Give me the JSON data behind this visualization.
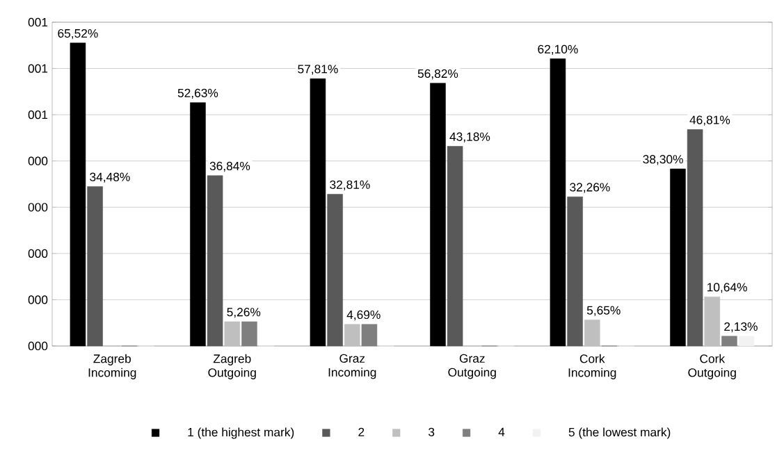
{
  "chart_data": {
    "type": "bar",
    "categories": [
      "Zagreb Incoming",
      "Zagreb Outgoing",
      "Graz Incoming",
      "Graz Outgoing",
      "Cork Incoming",
      "Cork Outgoing"
    ],
    "series": [
      {
        "name": "1 (the highest mark)",
        "color": "#000000",
        "values": [
          0.6552,
          0.5263,
          0.5781,
          0.5682,
          0.621,
          0.383
        ],
        "value_labels": [
          "65,52%",
          "52,63%",
          "57,81%",
          "56,82%",
          "62,10%",
          "38,30%"
        ]
      },
      {
        "name": "2",
        "color": "#595959",
        "values": [
          0.3448,
          0.3684,
          0.3281,
          0.4318,
          0.3226,
          0.4681
        ],
        "value_labels": [
          "34,48%",
          "36,84%",
          "32,81%",
          "43,18%",
          "32,26%",
          "46,81%"
        ]
      },
      {
        "name": "3",
        "color": "#bfbfbf",
        "values": [
          0,
          0.0526,
          0.0469,
          0,
          0.0565,
          0.1064
        ],
        "value_labels": [
          null,
          "5,26%",
          "4,69%",
          null,
          "5,65%",
          "10,64%"
        ]
      },
      {
        "name": "4",
        "color": "#7f7f7f",
        "values": [
          0,
          0.0526,
          0.0469,
          0,
          0,
          0.0213
        ],
        "value_labels": [
          null,
          null,
          null,
          null,
          null,
          "2,13%"
        ]
      },
      {
        "name": "5 (the lowest mark)",
        "color": "#f2f2f2",
        "values": [
          0,
          0,
          0,
          0,
          0,
          0.0213
        ],
        "value_labels": [
          null,
          null,
          null,
          null,
          null,
          null
        ]
      }
    ],
    "ylim": [
      0,
      0.7
    ],
    "yticks": [
      {
        "value": 0,
        "label": "000"
      },
      {
        "value": 0.1,
        "label": "000"
      },
      {
        "value": 0.2,
        "label": "000"
      },
      {
        "value": 0.3,
        "label": "000"
      },
      {
        "value": 0.4,
        "label": "000"
      },
      {
        "value": 0.5,
        "label": "001"
      },
      {
        "value": 0.6,
        "label": "001"
      },
      {
        "value": 0.7,
        "label": "001"
      }
    ],
    "grid": "y",
    "legend": "bottom"
  }
}
